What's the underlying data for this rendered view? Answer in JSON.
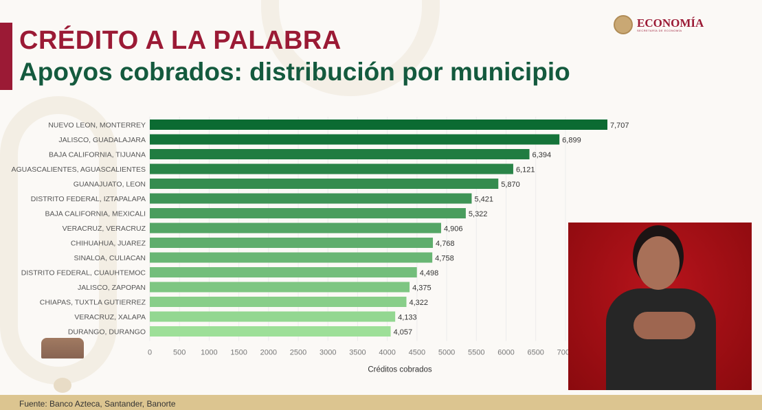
{
  "header": {
    "title": "CRÉDITO A LA PALABRA",
    "subtitle": "Apoyos cobrados: distribución por municipio"
  },
  "logo": {
    "name": "ECONOMÍA",
    "sub": "SECRETARÍA DE ECONOMÍA"
  },
  "footer": {
    "source": "Fuente: Banco Azteca, Santander, Banorte"
  },
  "colors": {
    "title": "#9b1a35",
    "subtitle": "#145a3e",
    "bar_dark": "#0b6b32",
    "bar_light": "#9ddf98",
    "footer": "#dcc590",
    "video_bg": "#a50f16"
  },
  "chart_data": {
    "type": "bar",
    "orientation": "horizontal",
    "xlabel": "Créditos cobrados",
    "xlim": [
      0,
      8000
    ],
    "xticks": [
      0,
      500,
      1000,
      1500,
      2000,
      2500,
      3000,
      3500,
      4000,
      4500,
      5000,
      5500,
      6000,
      6500,
      7000
    ],
    "grid": true,
    "categories": [
      "NUEVO LEON, MONTERREY",
      "JALISCO, GUADALAJARA",
      "BAJA CALIFORNIA, TIJUANA",
      "AGUASCALIENTES, AGUASCALIENTES",
      "GUANAJUATO, LEON",
      "DISTRITO FEDERAL, IZTAPALAPA",
      "BAJA CALIFORNIA, MEXICALI",
      "VERACRUZ, VERACRUZ",
      "CHIHUAHUA, JUAREZ",
      "SINALOA, CULIACAN",
      "DISTRITO FEDERAL, CUAUHTEMOC",
      "JALISCO, ZAPOPAN",
      "CHIAPAS, TUXTLA GUTIERREZ",
      "VERACRUZ, XALAPA",
      "DURANGO, DURANGO"
    ],
    "values": [
      7707,
      6899,
      6394,
      6121,
      5870,
      5421,
      5322,
      4906,
      4768,
      4758,
      4498,
      4375,
      4322,
      4133,
      4057
    ],
    "labels": [
      "7,707",
      "6,899",
      "6,394",
      "6,121",
      "5,870",
      "5,421",
      "5,322",
      "4,906",
      "4,768",
      "4,758",
      "4,498",
      "4,375",
      "4,322",
      "4,133",
      "4,057"
    ]
  }
}
